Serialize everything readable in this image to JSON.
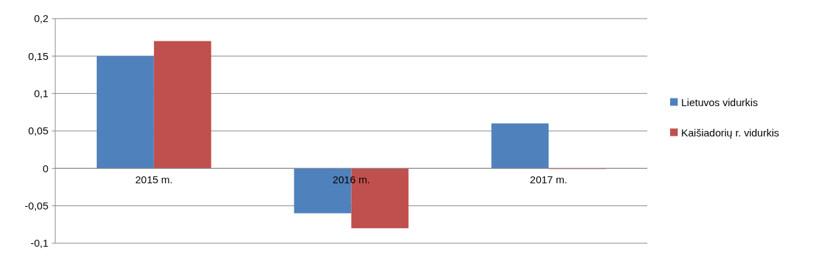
{
  "chart_data": {
    "type": "bar",
    "categories": [
      "2015 m.",
      "2016 m.",
      "2017 m."
    ],
    "series": [
      {
        "name": "Lietuvos vidurkis",
        "color": "#4f81bd",
        "values": [
          0.15,
          -0.06,
          0.06
        ]
      },
      {
        "name": "Kaišiadorių r. vidurkis",
        "color": "#c0504d",
        "values": [
          0.17,
          -0.08,
          0
        ]
      }
    ],
    "ylim": [
      -0.1,
      0.2
    ],
    "yticks": [
      {
        "value": -0.1,
        "label": "-0,1"
      },
      {
        "value": -0.05,
        "label": "-0,05"
      },
      0,
      {
        "value": 0.05,
        "label": "0,05"
      },
      {
        "value": 0.1,
        "label": "0,1"
      },
      {
        "value": 0.15,
        "label": "0,15"
      },
      {
        "value": 0.2,
        "label": "0,2"
      }
    ],
    "grid": "y",
    "legend": "right"
  }
}
